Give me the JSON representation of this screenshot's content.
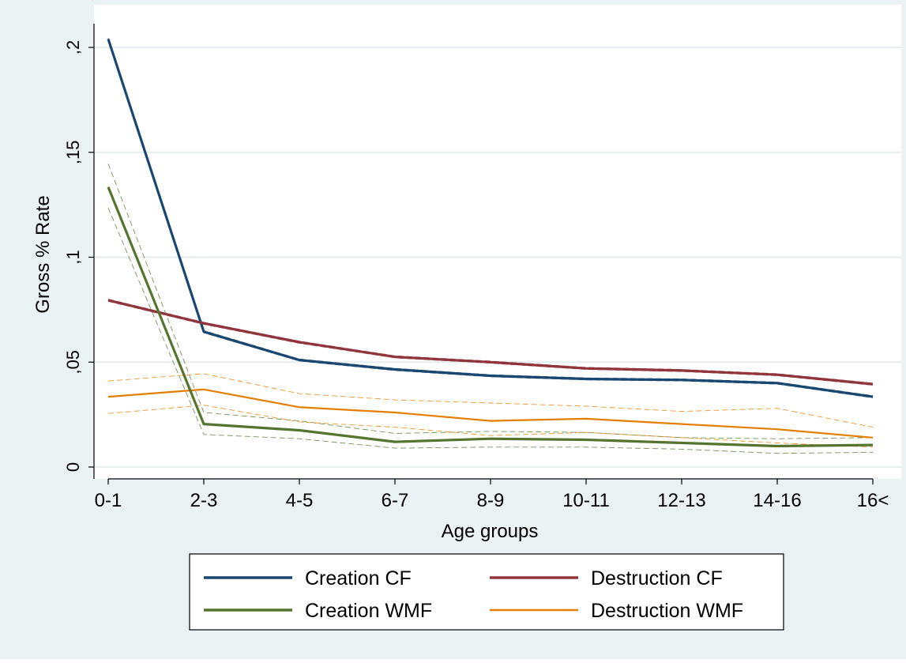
{
  "chart_data": {
    "type": "line",
    "title": "",
    "xlabel": "Age groups",
    "ylabel": "Gross % Rate",
    "categories": [
      "0-1",
      "2-3",
      "4-5",
      "6-7",
      "8-9",
      "10-11",
      "12-13",
      "14-16",
      "16<"
    ],
    "y_ticks": [
      {
        "value": 0,
        "label": "0"
      },
      {
        "value": 0.05,
        "label": ",05"
      },
      {
        "value": 0.1,
        "label": ",1"
      },
      {
        "value": 0.15,
        "label": ",15"
      },
      {
        "value": 0.2,
        "label": ",2"
      }
    ],
    "ylim": [
      0,
      0.2
    ],
    "grid": true,
    "legend_position": "bottom",
    "series": [
      {
        "name": "Creation CF",
        "color": "#1a476f",
        "values": [
          0.204,
          0.0645,
          0.051,
          0.0465,
          0.0435,
          0.042,
          0.0415,
          0.04,
          0.0335
        ],
        "ci_lower": [
          0.2035,
          0.064,
          0.0505,
          0.046,
          0.043,
          0.0415,
          0.041,
          0.0395,
          0.033
        ],
        "ci_upper": [
          0.2045,
          0.065,
          0.0515,
          0.047,
          0.044,
          0.0425,
          0.042,
          0.0405,
          0.034
        ]
      },
      {
        "name": "Destruction CF",
        "color": "#90353b",
        "values": [
          0.0795,
          0.0685,
          0.0595,
          0.0525,
          0.05,
          0.047,
          0.046,
          0.044,
          0.0395
        ],
        "ci_lower": [
          0.079,
          0.068,
          0.059,
          0.052,
          0.0495,
          0.0465,
          0.0455,
          0.0435,
          0.039
        ],
        "ci_upper": [
          0.08,
          0.069,
          0.06,
          0.053,
          0.0505,
          0.0475,
          0.0465,
          0.0445,
          0.04
        ]
      },
      {
        "name": "Creation WMF",
        "color": "#55752f",
        "values": [
          0.1335,
          0.0205,
          0.0175,
          0.012,
          0.0135,
          0.013,
          0.0115,
          0.01,
          0.0105
        ],
        "ci_lower": [
          0.1235,
          0.0155,
          0.0135,
          0.009,
          0.0095,
          0.0095,
          0.0085,
          0.0065,
          0.007
        ],
        "ci_upper": [
          0.1445,
          0.026,
          0.022,
          0.016,
          0.017,
          0.0165,
          0.014,
          0.0135,
          0.014
        ]
      },
      {
        "name": "Destruction WMF",
        "color": "#e37e00",
        "values": [
          0.0335,
          0.037,
          0.0285,
          0.026,
          0.022,
          0.023,
          0.0205,
          0.018,
          0.014
        ],
        "ci_lower": [
          0.0255,
          0.0295,
          0.0215,
          0.019,
          0.015,
          0.0165,
          0.014,
          0.0115,
          0.0095
        ],
        "ci_upper": [
          0.041,
          0.0445,
          0.035,
          0.032,
          0.0305,
          0.029,
          0.0265,
          0.028,
          0.019
        ]
      }
    ]
  }
}
